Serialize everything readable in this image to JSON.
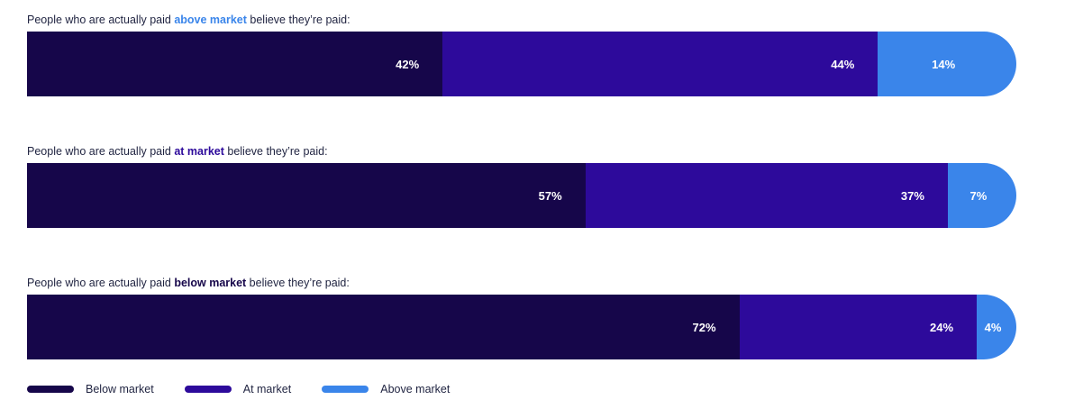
{
  "colors": {
    "below": "#16064a",
    "at": "#2d0a9b",
    "above": "#3a85ea"
  },
  "chart_data": {
    "type": "bar",
    "stacked": true,
    "orientation": "horizontal",
    "xlim": [
      0,
      100
    ],
    "categories": [
      "above market",
      "at market",
      "below market"
    ],
    "rows": [
      {
        "prefix": "People who are actually paid ",
        "highlight": "above market",
        "highlight_color": "#3a85ea",
        "suffix": " believe they’re paid:",
        "values": [
          42,
          44,
          14
        ],
        "labels": [
          "42%",
          "44%",
          "14%"
        ]
      },
      {
        "prefix": "People who are actually paid ",
        "highlight": "at market",
        "highlight_color": "#2d0a9b",
        "suffix": " believe they’re paid:",
        "values": [
          57,
          37,
          7
        ],
        "labels": [
          "57%",
          "37%",
          "7%"
        ]
      },
      {
        "prefix": "People who are actually paid ",
        "highlight": "below market",
        "highlight_color": "#16064a",
        "suffix": " believe they’re paid:",
        "values": [
          72,
          24,
          4
        ],
        "labels": [
          "72%",
          "24%",
          "4%"
        ]
      }
    ],
    "series": [
      {
        "name": "Below market",
        "color": "#16064a"
      },
      {
        "name": "At market",
        "color": "#2d0a9b"
      },
      {
        "name": "Above market",
        "color": "#3a85ea"
      }
    ]
  }
}
